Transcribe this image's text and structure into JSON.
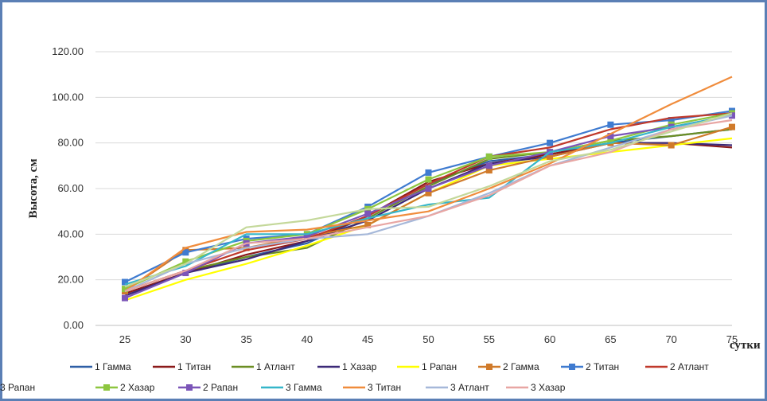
{
  "chart_data": {
    "type": "line",
    "title": "",
    "xlabel": "сутки",
    "ylabel": "Высота, см",
    "x": [
      25,
      30,
      35,
      40,
      45,
      50,
      55,
      60,
      65,
      70,
      75
    ],
    "x_ticks": [
      "25",
      "30",
      "35",
      "40",
      "45",
      "50",
      "55",
      "60",
      "65",
      "70",
      "75"
    ],
    "ylim": [
      0,
      120
    ],
    "y_ticks": [
      "0.00",
      "20.00",
      "40.00",
      "60.00",
      "80.00",
      "100.00",
      "120.00"
    ],
    "grid": true,
    "legend_position": "bottom",
    "series": [
      {
        "name": "1 Гамма",
        "color": "#2e5fa6",
        "marker": false,
        "values": [
          13,
          23,
          30,
          36,
          48,
          62,
          72,
          75,
          80,
          83,
          86
        ]
      },
      {
        "name": "1 Титан",
        "color": "#8b1a1a",
        "marker": false,
        "values": [
          14,
          23,
          31,
          37,
          48,
          63,
          71,
          75,
          80,
          80,
          78
        ]
      },
      {
        "name": "1 Атлант",
        "color": "#6b8e23",
        "marker": false,
        "values": [
          15,
          24,
          30,
          34,
          47,
          61,
          73,
          76,
          81,
          83,
          86
        ]
      },
      {
        "name": "1 Хазар",
        "color": "#3c2a78",
        "marker": false,
        "values": [
          13,
          23,
          29,
          37,
          46,
          60,
          71,
          74,
          80,
          80,
          79
        ]
      },
      {
        "name": "1 Рапан",
        "color": "#ffff00",
        "marker": false,
        "values": [
          11,
          20,
          27,
          35,
          44,
          58,
          70,
          73,
          76,
          79,
          82
        ]
      },
      {
        "name": "2 Гамма",
        "color": "#d07a2a",
        "marker": true,
        "values": [
          15,
          33,
          34,
          39,
          44,
          58,
          68,
          74,
          80,
          79,
          87
        ]
      },
      {
        "name": "2 Титан",
        "color": "#3f7bd0",
        "marker": true,
        "values": [
          19,
          32,
          38,
          40,
          52,
          67,
          74,
          80,
          88,
          90,
          94
        ]
      },
      {
        "name": "2 Атлант",
        "color": "#c0392b",
        "marker": false,
        "values": [
          15,
          24,
          33,
          38,
          48,
          62,
          74,
          78,
          86,
          91,
          93
        ]
      },
      {
        "name": "2 Хазар",
        "color": "#8dc63f",
        "marker": true,
        "values": [
          16,
          28,
          37,
          40,
          51,
          64,
          74,
          76,
          81,
          88,
          93
        ]
      },
      {
        "name": "2 Рапан",
        "color": "#7b55b8",
        "marker": true,
        "values": [
          12,
          23,
          36,
          39,
          49,
          60,
          70,
          76,
          83,
          87,
          92
        ]
      },
      {
        "name": "3 Гамма",
        "color": "#35b6c9",
        "marker": false,
        "values": [
          18,
          26,
          40,
          40,
          47,
          53,
          56,
          76,
          80,
          87,
          92
        ]
      },
      {
        "name": "3 Титан",
        "color": "#f08c3c",
        "marker": false,
        "values": [
          15,
          34,
          41,
          42,
          46,
          50,
          60,
          71,
          84,
          97,
          109
        ]
      },
      {
        "name": "3 Атлант",
        "color": "#a6b8d9",
        "marker": false,
        "values": [
          15,
          27,
          34,
          38,
          40,
          48,
          58,
          70,
          78,
          86,
          92
        ]
      },
      {
        "name": "3 Хазар",
        "color": "#e8a6a3",
        "marker": false,
        "values": [
          15,
          24,
          36,
          38,
          43,
          48,
          57,
          70,
          76,
          86,
          90
        ]
      },
      {
        "name": "3 Рапан",
        "color": "#c4d89a",
        "marker": false,
        "values": [
          17,
          27,
          43,
          46,
          51,
          52,
          61,
          72,
          77,
          85,
          93
        ]
      }
    ]
  }
}
